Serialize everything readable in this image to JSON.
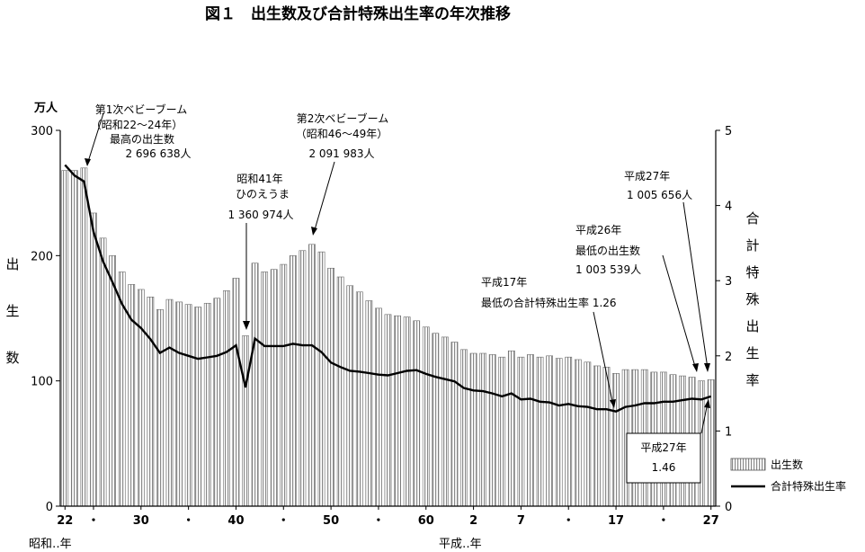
{
  "title": "図１　出生数及び合計特殊出生率の年次推移",
  "left_unit": "万人",
  "left_axis_title": [
    "出",
    "生",
    "数"
  ],
  "right_axis_title": [
    "合",
    "計",
    "特",
    "殊",
    "出",
    "生",
    "率"
  ],
  "x_era_left": "昭和‥年",
  "x_era_right": "平成‥年",
  "legend": {
    "bars": "出生数",
    "line": "合計特殊出生率"
  },
  "annotations": {
    "first_boom": [
      "第1次ベビーブーム",
      "（昭和22～24年）",
      "最高の出生数",
      "2 696 638人"
    ],
    "hinoeuma": [
      "昭和41年",
      "ひのえうま",
      "1 360 974人"
    ],
    "second_boom": [
      "第2次ベビーブーム",
      "（昭和46～49年）",
      "2 091 983人"
    ],
    "h17": [
      "平成17年",
      "最低の合計特殊出生率 1.26"
    ],
    "h26": [
      "平成26年",
      "最低の出生数",
      "1 003 539人"
    ],
    "h27_births": [
      "平成27年",
      "1 005 656人"
    ],
    "h27_rate": [
      "平成27年",
      "1.46"
    ]
  },
  "chart_data": {
    "type": "bar",
    "title": "図１　出生数及び合計特殊出生率の年次推移",
    "left_ylim": [
      0,
      300
    ],
    "right_ylim": [
      0,
      5
    ],
    "left_yticks": [
      0,
      100,
      200,
      300
    ],
    "right_yticks": [
      0,
      1,
      2,
      3,
      4,
      5
    ],
    "x_tick_labels": [
      "22",
      "・",
      "30",
      "・",
      "40",
      "・",
      "50",
      "・",
      "60",
      "2",
      "7",
      "・",
      "17",
      "・",
      "27"
    ],
    "x_tick_years": [
      1947,
      1950,
      1955,
      1960,
      1965,
      1970,
      1975,
      1980,
      1985,
      1990,
      1995,
      2000,
      2005,
      2010,
      2015
    ],
    "years": [
      1947,
      1948,
      1949,
      1950,
      1951,
      1952,
      1953,
      1954,
      1955,
      1956,
      1957,
      1958,
      1959,
      1960,
      1961,
      1962,
      1963,
      1964,
      1965,
      1966,
      1967,
      1968,
      1969,
      1970,
      1971,
      1972,
      1973,
      1974,
      1975,
      1976,
      1977,
      1978,
      1979,
      1980,
      1981,
      1982,
      1983,
      1984,
      1985,
      1986,
      1987,
      1988,
      1989,
      1990,
      1991,
      1992,
      1993,
      1994,
      1995,
      1996,
      1997,
      1998,
      1999,
      2000,
      2001,
      2002,
      2003,
      2004,
      2005,
      2006,
      2007,
      2008,
      2009,
      2010,
      2011,
      2012,
      2013,
      2014,
      2015
    ],
    "series": [
      {
        "name": "出生数",
        "type": "bar",
        "axis": "left",
        "values": [
          268,
          268,
          270,
          234,
          214,
          200,
          187,
          177,
          173,
          167,
          157,
          165,
          163,
          161,
          159,
          162,
          166,
          172,
          182,
          136,
          194,
          187,
          189,
          193,
          200,
          204,
          209,
          203,
          190,
          183,
          176,
          171,
          164,
          158,
          153,
          152,
          151,
          148,
          143,
          138,
          135,
          131,
          125,
          122,
          122,
          121,
          119,
          124,
          119,
          121,
          119,
          120,
          118,
          119,
          117,
          115,
          112,
          111,
          106,
          109,
          109,
          109,
          107,
          107,
          105,
          104,
          103,
          100,
          101
        ]
      },
      {
        "name": "合計特殊出生率",
        "type": "line",
        "axis": "right",
        "values": [
          4.54,
          4.4,
          4.32,
          3.65,
          3.26,
          2.98,
          2.69,
          2.48,
          2.37,
          2.22,
          2.04,
          2.11,
          2.04,
          2.0,
          1.96,
          1.98,
          2.0,
          2.05,
          2.14,
          1.58,
          2.23,
          2.13,
          2.13,
          2.13,
          2.16,
          2.14,
          2.14,
          2.05,
          1.91,
          1.85,
          1.8,
          1.79,
          1.77,
          1.75,
          1.74,
          1.77,
          1.8,
          1.81,
          1.76,
          1.72,
          1.69,
          1.66,
          1.57,
          1.54,
          1.53,
          1.5,
          1.46,
          1.5,
          1.42,
          1.43,
          1.39,
          1.38,
          1.34,
          1.36,
          1.33,
          1.32,
          1.29,
          1.29,
          1.26,
          1.32,
          1.34,
          1.37,
          1.37,
          1.39,
          1.39,
          1.41,
          1.43,
          1.42,
          1.46
        ]
      }
    ],
    "legend_position": "bottom-right",
    "grid": false
  }
}
